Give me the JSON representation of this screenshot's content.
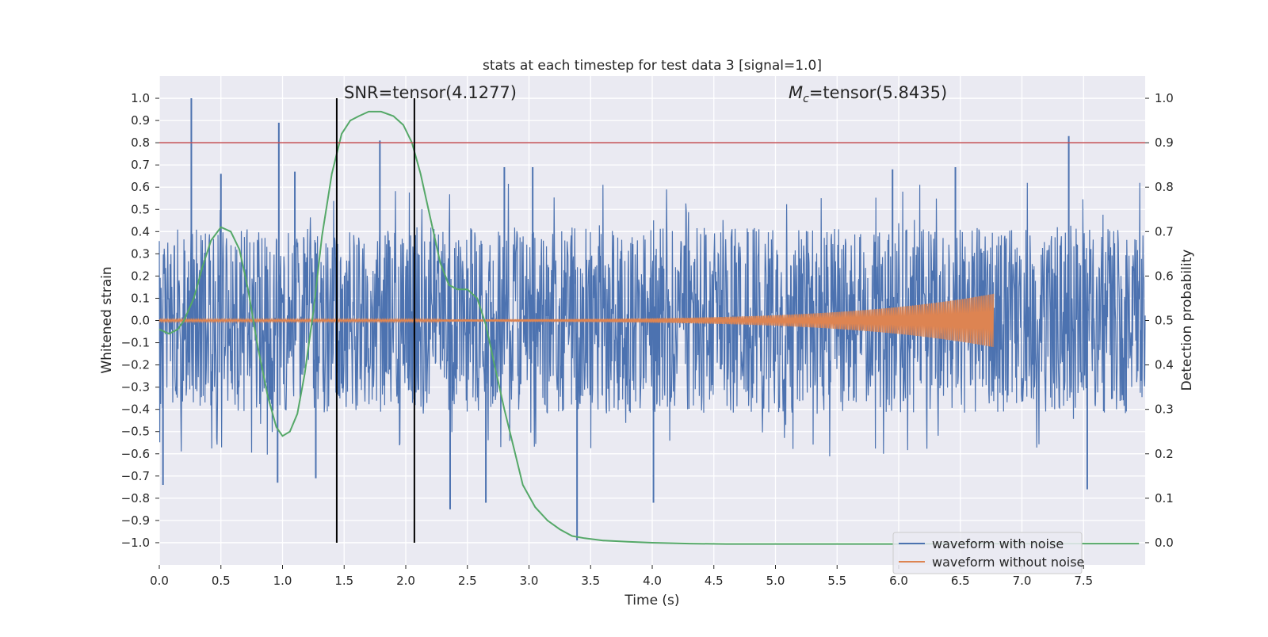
{
  "chart_data": {
    "type": "line",
    "title": "stats at each timestep for test data 3 [signal=1.0]",
    "xlabel": "Time (s)",
    "ylabel": "Whitened strain",
    "ylabel_right": "Detection probability",
    "xlim": [
      0.0,
      8.0
    ],
    "ylim": [
      -1.1,
      1.1
    ],
    "ylim_right": [
      -0.05,
      1.05
    ],
    "x_ticks": [
      "0.0",
      "0.5",
      "1.0",
      "1.5",
      "2.0",
      "2.5",
      "3.0",
      "3.5",
      "4.0",
      "4.5",
      "5.0",
      "5.5",
      "6.0",
      "6.5",
      "7.0",
      "7.5"
    ],
    "y_ticks": [
      "1.0",
      "0.9",
      "0.8",
      "0.7",
      "0.6",
      "0.5",
      "0.4",
      "0.3",
      "0.2",
      "0.1",
      "0.0",
      "−0.1",
      "−0.2",
      "−0.3",
      "−0.4",
      "−0.5",
      "−0.6",
      "−0.7",
      "−0.8",
      "−0.9",
      "−1.0"
    ],
    "y_ticks_right": [
      "1.0",
      "0.9",
      "0.8",
      "0.7",
      "0.6",
      "0.5",
      "0.4",
      "0.3",
      "0.2",
      "0.1",
      "0.0"
    ],
    "grid": true,
    "legend_position": "lower-right",
    "annotations": {
      "snr_text": "SNR=tensor(4.1277)",
      "mc_prefix": "M",
      "mc_sub": "c",
      "mc_value": "=tensor(5.8435)"
    },
    "threshold": {
      "y_right": 0.9,
      "color": "#c44e52"
    },
    "vlines": [
      1.44,
      2.07
    ],
    "series": [
      {
        "name": "waveform with noise",
        "color": "#4c72b0",
        "axis": "left",
        "noise_band": 0.25,
        "typical_peak": 0.42,
        "spikes": [
          [
            0.26,
            1.0
          ],
          [
            0.97,
            0.89
          ],
          [
            1.79,
            0.81
          ],
          [
            7.38,
            0.83
          ],
          [
            3.39,
            -0.99
          ],
          [
            2.36,
            -0.85
          ],
          [
            2.65,
            -0.82
          ],
          [
            0.96,
            -0.73
          ],
          [
            0.03,
            -0.74
          ],
          [
            4.01,
            -0.82
          ],
          [
            1.27,
            -0.71
          ],
          [
            7.53,
            -0.76
          ],
          [
            0.5,
            0.66
          ],
          [
            1.1,
            0.67
          ],
          [
            2.8,
            0.69
          ],
          [
            3.03,
            0.69
          ],
          [
            5.95,
            0.68
          ],
          [
            6.46,
            0.69
          ]
        ]
      },
      {
        "name": "waveform without noise",
        "color": "#dd8452",
        "axis": "left",
        "chirp_end": 6.77,
        "amp_start": 0.005,
        "amp_end": 0.12
      },
      {
        "name": "detection probability",
        "color": "#55a868",
        "axis": "right",
        "x": [
          0.0,
          0.08,
          0.15,
          0.2,
          0.28,
          0.35,
          0.42,
          0.5,
          0.58,
          0.65,
          0.72,
          0.8,
          0.88,
          0.95,
          1.0,
          1.06,
          1.12,
          1.18,
          1.25,
          1.32,
          1.4,
          1.48,
          1.55,
          1.62,
          1.7,
          1.8,
          1.9,
          1.98,
          2.05,
          2.12,
          2.2,
          2.28,
          2.35,
          2.42,
          2.5,
          2.58,
          2.65,
          2.72,
          2.8,
          2.88,
          2.95,
          3.05,
          3.15,
          3.25,
          3.35,
          3.45,
          3.6,
          3.8,
          4.0,
          4.3,
          4.6,
          5.0,
          5.5,
          6.0,
          6.5,
          7.0,
          7.5,
          7.95
        ],
        "y": [
          0.48,
          0.47,
          0.48,
          0.5,
          0.55,
          0.62,
          0.68,
          0.71,
          0.7,
          0.66,
          0.57,
          0.44,
          0.33,
          0.26,
          0.24,
          0.25,
          0.29,
          0.38,
          0.52,
          0.69,
          0.83,
          0.92,
          0.95,
          0.96,
          0.97,
          0.97,
          0.96,
          0.94,
          0.9,
          0.83,
          0.73,
          0.63,
          0.58,
          0.57,
          0.57,
          0.55,
          0.49,
          0.4,
          0.3,
          0.21,
          0.13,
          0.08,
          0.05,
          0.03,
          0.015,
          0.01,
          0.005,
          0.002,
          0.0,
          -0.002,
          -0.003,
          -0.003,
          -0.003,
          -0.003,
          -0.002,
          -0.002,
          -0.002,
          -0.002
        ]
      }
    ]
  }
}
